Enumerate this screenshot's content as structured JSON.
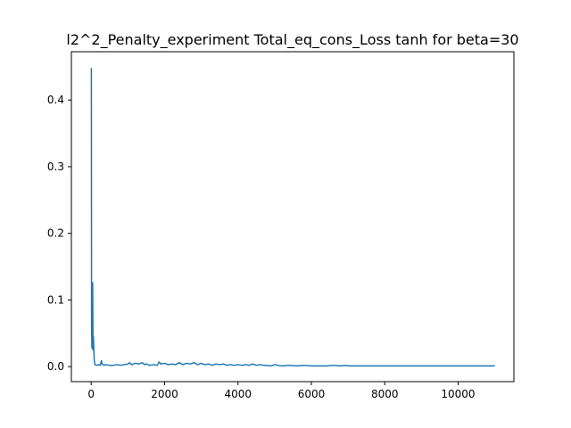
{
  "chart_data": {
    "type": "line",
    "title": "l2^2_Penalty_experiment Total_eq_cons_Loss tanh for beta=30",
    "xlabel": "",
    "ylabel": "",
    "xlim": [
      -540,
      11520
    ],
    "ylim": [
      -0.0225,
      0.4725
    ],
    "x_ticks": [
      0,
      2000,
      4000,
      6000,
      8000,
      10000
    ],
    "x_tick_labels": [
      "0",
      "2000",
      "4000",
      "6000",
      "8000",
      "10000"
    ],
    "y_ticks": [
      0.0,
      0.1,
      0.2,
      0.3,
      0.4
    ],
    "y_tick_labels": [
      "0.0",
      "0.1",
      "0.2",
      "0.3",
      "0.4"
    ],
    "grid": false,
    "legend": false,
    "series": [
      {
        "color": "#1f77b4",
        "x": [
          0,
          5,
          10,
          20,
          30,
          40,
          50,
          60,
          70,
          80,
          100,
          150,
          200,
          250,
          280,
          300,
          350,
          400,
          500,
          600,
          700,
          800,
          900,
          1000,
          1050,
          1100,
          1200,
          1300,
          1400,
          1450,
          1500,
          1600,
          1700,
          1800,
          1850,
          1900,
          2000,
          2100,
          2200,
          2300,
          2400,
          2500,
          2600,
          2700,
          2800,
          2900,
          3000,
          3100,
          3200,
          3300,
          3400,
          3500,
          3600,
          3700,
          3800,
          3900,
          4000,
          4100,
          4200,
          4300,
          4400,
          4500,
          4600,
          4700,
          4800,
          4900,
          5000,
          5100,
          5200,
          5400,
          5600,
          5800,
          6000,
          6200,
          6400,
          6600,
          6800,
          6950,
          7000,
          7200,
          7500,
          7800,
          8000,
          8200,
          8500,
          8800,
          9000,
          9500,
          10000,
          10500,
          11000
        ],
        "y": [
          0.448,
          0.446,
          0.06,
          0.028,
          0.06,
          0.126,
          0.025,
          0.045,
          0.03,
          0.012,
          0.003,
          0.002,
          0.003,
          0.002,
          0.009,
          0.004,
          0.002,
          0.003,
          0.002,
          0.002,
          0.003,
          0.002,
          0.003,
          0.004,
          0.006,
          0.003,
          0.005,
          0.004,
          0.006,
          0.003,
          0.004,
          0.002,
          0.003,
          0.002,
          0.007,
          0.004,
          0.005,
          0.003,
          0.004,
          0.003,
          0.006,
          0.003,
          0.005,
          0.004,
          0.006,
          0.003,
          0.005,
          0.003,
          0.004,
          0.002,
          0.004,
          0.003,
          0.004,
          0.002,
          0.003,
          0.002,
          0.003,
          0.002,
          0.003,
          0.002,
          0.004,
          0.002,
          0.003,
          0.002,
          0.002,
          0.001,
          0.003,
          0.002,
          0.001,
          0.002,
          0.001,
          0.002,
          0.001,
          0.001,
          0.001,
          0.002,
          0.001,
          0.002,
          0.001,
          0.001,
          0.001,
          0.001,
          0.001,
          0.001,
          0.001,
          0.001,
          0.001,
          0.001,
          0.001,
          0.001,
          0.001
        ]
      }
    ]
  }
}
